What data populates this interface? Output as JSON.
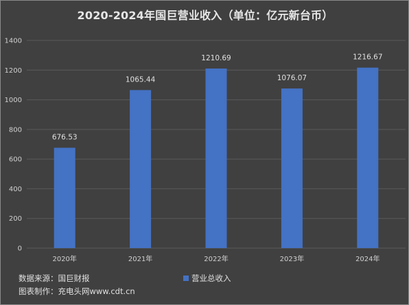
{
  "chart_data": {
    "type": "bar",
    "title": "2020-2024年国巨营业收入（单位：亿元新台币）",
    "categories": [
      "2020年",
      "2021年",
      "2022年",
      "2023年",
      "2024年"
    ],
    "series": [
      {
        "name": "营业总收入",
        "values": [
          676.53,
          1065.44,
          1210.69,
          1076.07,
          1216.67
        ],
        "color": "#4472c4"
      }
    ],
    "data_labels": [
      "676.53",
      "1065.44",
      "1210.69",
      "1076.07",
      "1216.67"
    ],
    "y_ticks": [
      "0",
      "200",
      "400",
      "600",
      "800",
      "1000",
      "1200",
      "1400"
    ],
    "ylim": [
      0,
      1400
    ],
    "grid": true,
    "legend_position": "bottom"
  },
  "footer": {
    "source": "数据来源：国巨财报",
    "maker": "图表制作：充电头网www.cdt.cn"
  },
  "colors": {
    "background": "#404040",
    "gridline": "#5a5a5a",
    "bar": "#4472c4"
  }
}
